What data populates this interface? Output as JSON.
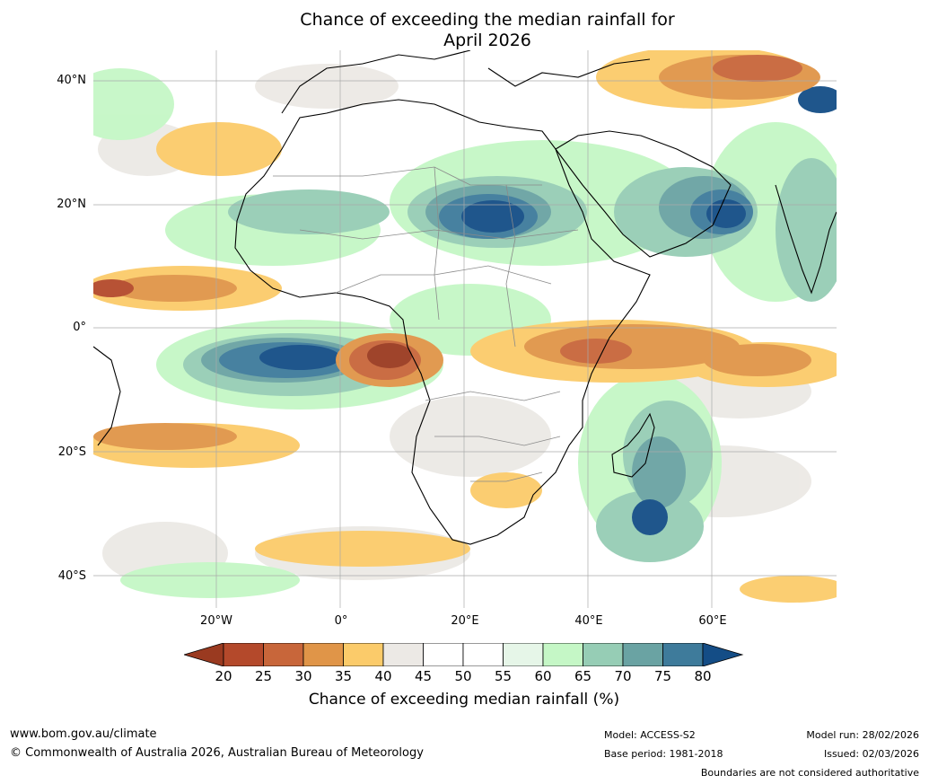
{
  "title": {
    "line1": "Chance of exceeding the median rainfall for",
    "line2": "April 2026"
  },
  "axes": {
    "lat_labels": [
      "40°N",
      "20°N",
      "0°",
      "20°S",
      "40°S"
    ],
    "lon_labels": [
      "20°W",
      "0°",
      "20°E",
      "40°E",
      "60°E"
    ]
  },
  "colorbar": {
    "ticks": [
      "20",
      "25",
      "30",
      "35",
      "40",
      "45",
      "50",
      "55",
      "60",
      "65",
      "70",
      "75",
      "80"
    ],
    "label": "Chance of exceeding median rainfall (%)",
    "colors": [
      "#9a3a20",
      "#b4492b",
      "#c8663a",
      "#e09548",
      "#fbcb6a",
      "#ece9e5",
      "#ffffff",
      "#ffffff",
      "#e6f6e8",
      "#c5f7c6",
      "#96cdb5",
      "#6aa3a3",
      "#3e7b9b",
      "#144d86"
    ]
  },
  "map_colors": {
    "ocean": "#ffffff",
    "coast": "#000000",
    "border": "#8a8a8a",
    "grid": "#aaaaaa"
  },
  "footer": {
    "url": "www.bom.gov.au/climate",
    "copyright": "© Commonwealth of Australia 2026, Australian Bureau of Meteorology",
    "model": "Model: ACCESS-S2",
    "base_period": "Base period: 1981-2018",
    "model_run": "Model run: 28/02/2026",
    "issued": "Issued: 02/03/2026",
    "disclaimer": "Boundaries are not considered authoritative"
  }
}
